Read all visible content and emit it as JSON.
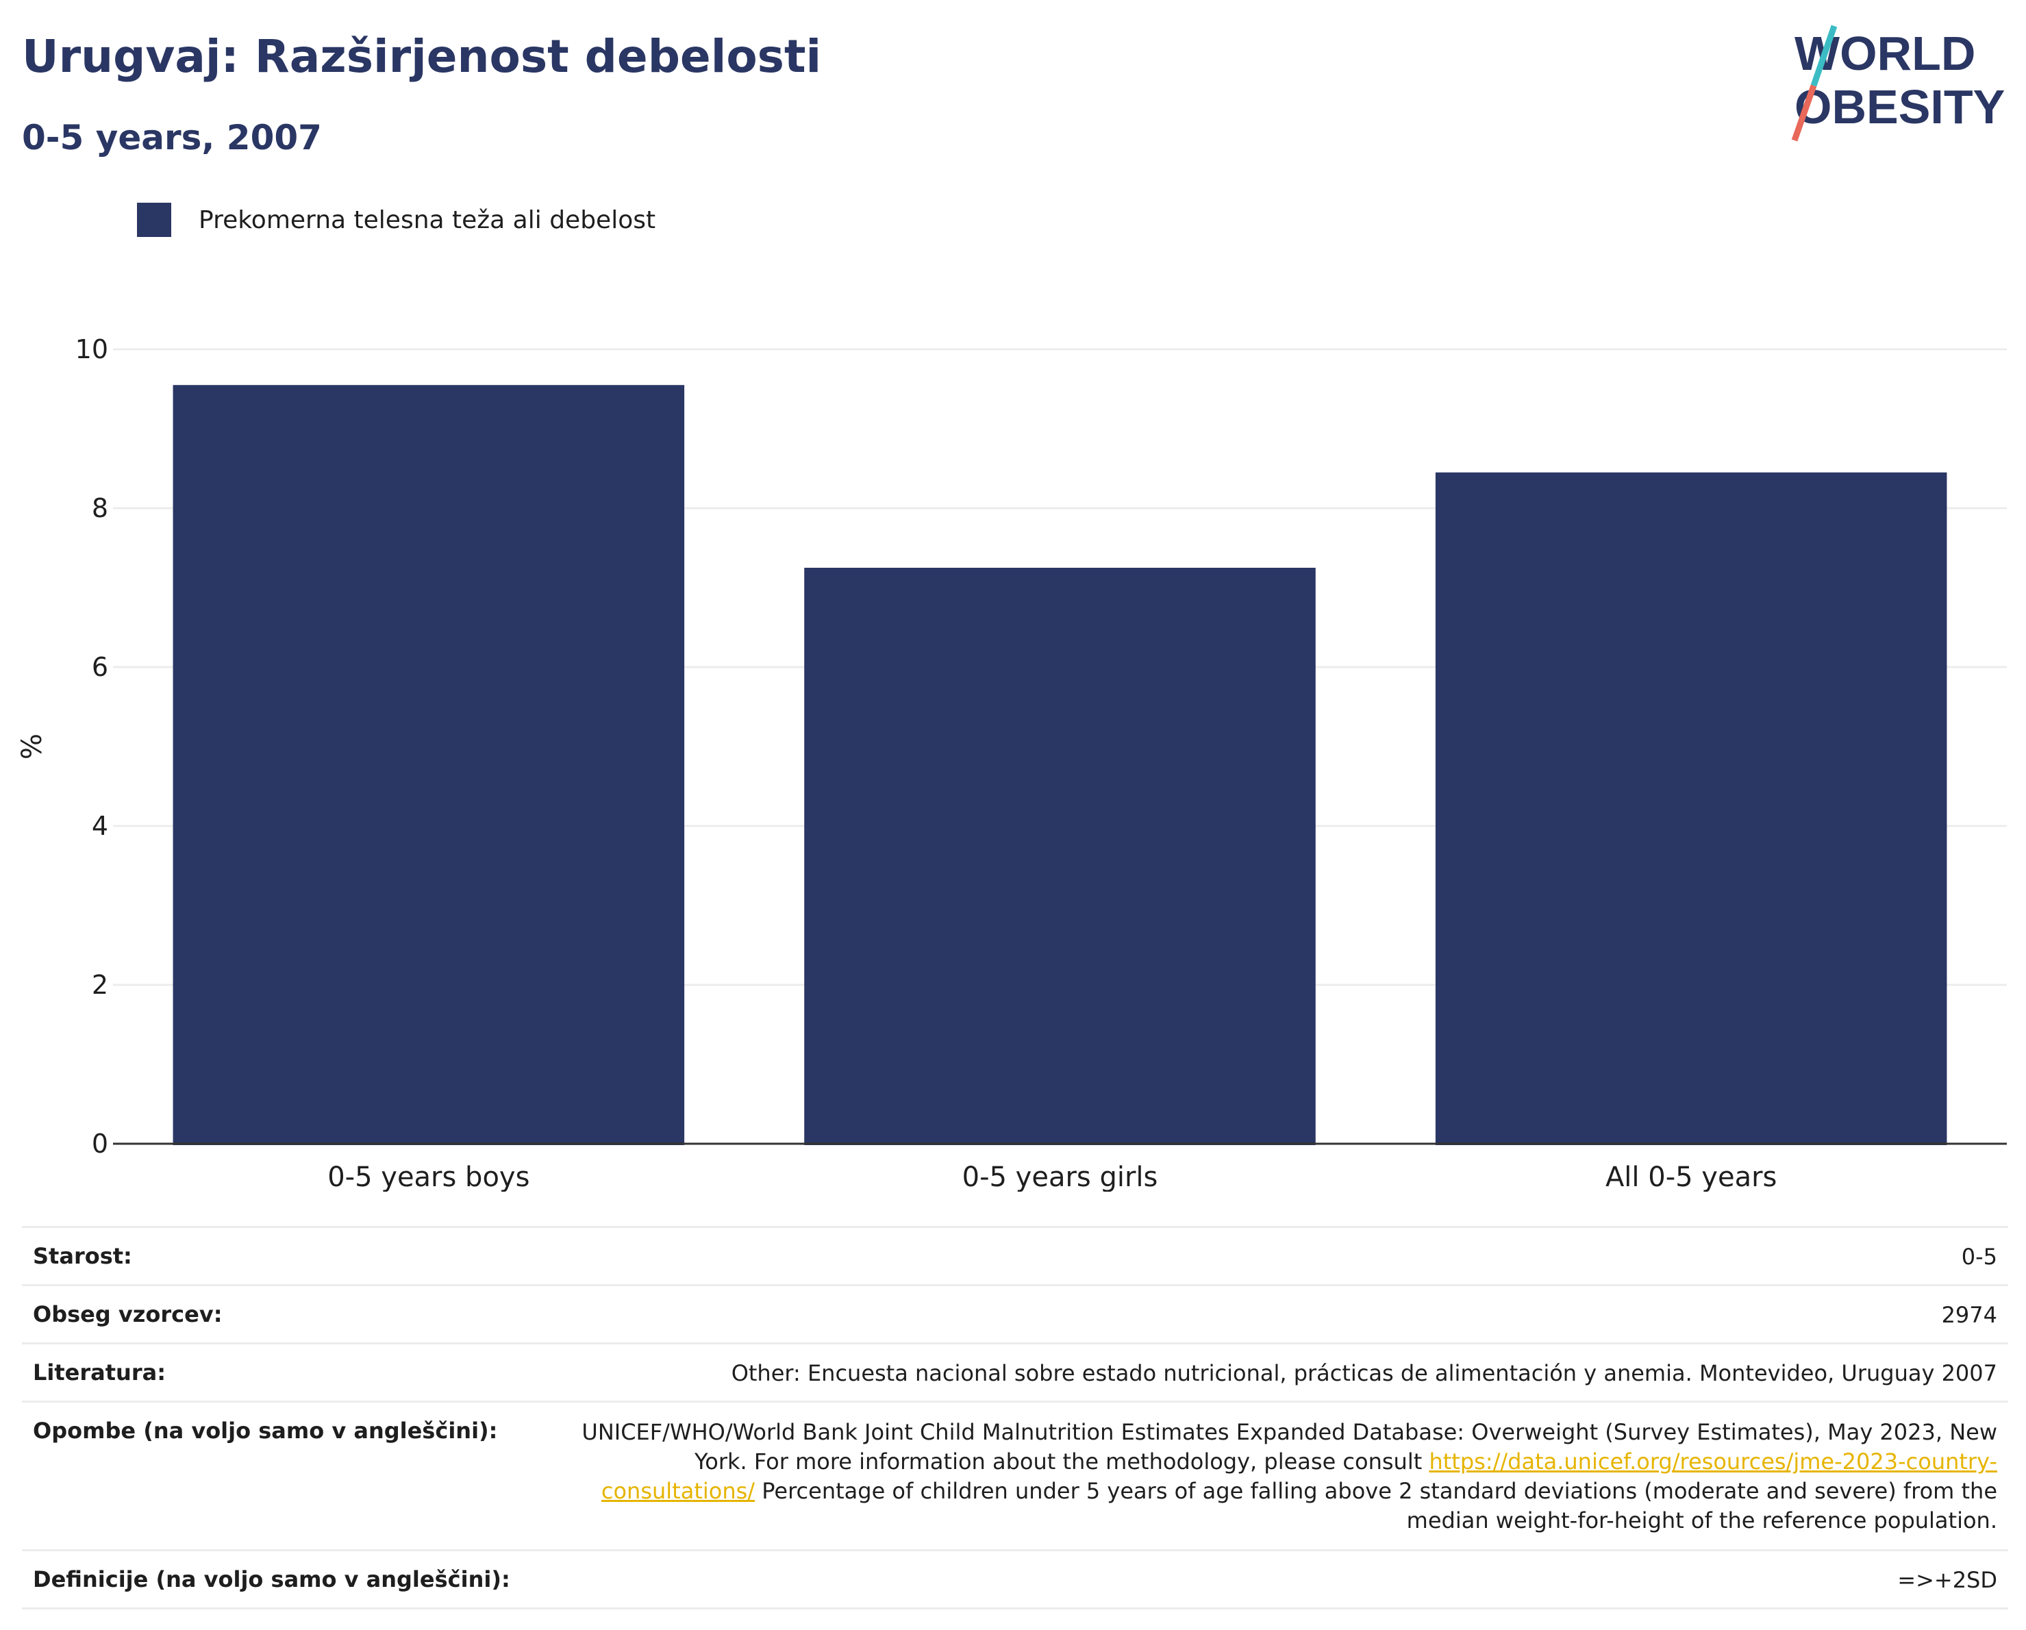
{
  "header": {
    "title": "Urugvaj: Razširjenost debelosti",
    "subtitle": "0-5 years, 2007"
  },
  "logo": {
    "line1": "WORLD",
    "line2": "OBESITY",
    "accent_colors": [
      "#3bbcc4",
      "#e8685a"
    ]
  },
  "legend": {
    "label": "Prekomerna telesna teža ali debelost",
    "color": "#2a3663"
  },
  "chart_data": {
    "type": "bar",
    "categories": [
      "0-5 years boys",
      "0-5 years girls",
      "All 0-5 years"
    ],
    "series": [
      {
        "name": "Prekomerna telesna teža ali debelost",
        "values": [
          9.55,
          7.25,
          8.45
        ]
      }
    ],
    "ylabel": "%",
    "ylim": [
      0,
      10
    ],
    "yticks": [
      0,
      2,
      4,
      6,
      8,
      10
    ],
    "grid": true,
    "legend_position": "top-left",
    "bar_color": "#2a3663"
  },
  "info": {
    "rows": [
      {
        "label": "Starost:",
        "value": "0-5"
      },
      {
        "label": "Obseg vzorcev:",
        "value": "2974"
      },
      {
        "label": "Literatura:",
        "value": "Other: Encuesta nacional sobre estado nutricional, prácticas de alimentación y anemia. Montevideo, Uruguay 2007"
      },
      {
        "label": "Opombe (na voljo samo v angleščini):",
        "value_pre": "UNICEF/WHO/World Bank Joint Child Malnutrition Estimates Expanded Database: Overweight (Survey Estimates), May 2023, New York. For more information about the methodology, please consult ",
        "link": "https://data.unicef.org/resources/jme-2023-country-consultations/",
        "value_post": " Percentage of children under 5 years of age falling above 2 standard deviations (moderate and severe) from the median weight-for-height of the reference population."
      },
      {
        "label": "Definicije (na voljo samo v angleščini):",
        "value": "=>+2SD"
      }
    ]
  }
}
